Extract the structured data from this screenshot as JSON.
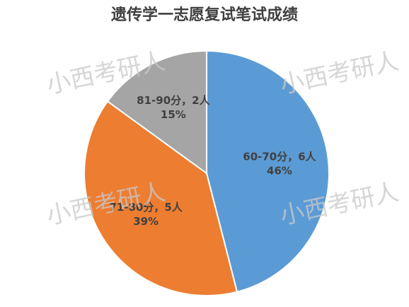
{
  "chart_data": {
    "type": "pie",
    "title": "遗传学一志愿复试笔试成绩",
    "categories": [
      "60-70分，6人",
      "71-80分，5人",
      "81-90分，2人"
    ],
    "values": [
      46,
      39,
      15
    ],
    "value_labels": [
      "46%",
      "39%",
      "15%"
    ],
    "colors": [
      "#5b9bd5",
      "#ed7d31",
      "#a5a5a5"
    ],
    "watermark": "小西考研人"
  }
}
